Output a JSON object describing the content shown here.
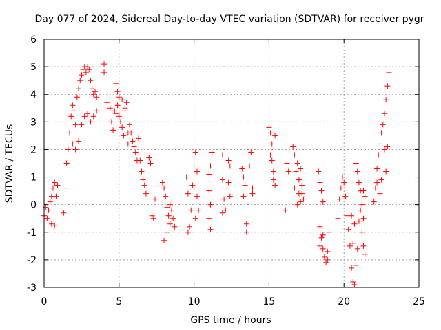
{
  "chart_data": {
    "type": "scatter",
    "title": "Day 077 of 2024, Sidereal Day-to-day VTEC variation (SDTVAR) for receiver pygr",
    "xlabel": "GPS time / hours",
    "ylabel": "SDTVAR / TECUs",
    "xlim": [
      0,
      25
    ],
    "ylim": [
      -3,
      6
    ],
    "xticks": [
      0,
      5,
      10,
      15,
      20,
      25
    ],
    "yticks": [
      -3,
      -2,
      -1,
      0,
      1,
      2,
      3,
      4,
      5,
      6
    ],
    "grid": true,
    "marker": "+",
    "color": "#ff0000",
    "series": [
      {
        "name": "SDTVAR",
        "points": [
          [
            0.0,
            -0.4
          ],
          [
            0.1,
            -0.1
          ],
          [
            0.2,
            -0.5
          ],
          [
            0.3,
            -0.2
          ],
          [
            0.4,
            0.1
          ],
          [
            0.5,
            0.3
          ],
          [
            0.6,
            0.6
          ],
          [
            0.7,
            0.8
          ],
          [
            0.9,
            0.7
          ],
          [
            0.5,
            -0.7
          ],
          [
            0.7,
            -0.75
          ],
          [
            0.8,
            0.3
          ],
          [
            1.3,
            -0.3
          ],
          [
            1.4,
            0.6
          ],
          [
            1.5,
            1.5
          ],
          [
            1.6,
            2.0
          ],
          [
            1.7,
            2.6
          ],
          [
            1.8,
            3.2
          ],
          [
            1.9,
            3.6
          ],
          [
            2.0,
            3.4
          ],
          [
            2.1,
            2.9
          ],
          [
            2.2,
            3.9
          ],
          [
            2.3,
            4.2
          ],
          [
            2.4,
            4.5
          ],
          [
            2.5,
            4.7
          ],
          [
            2.6,
            4.9
          ],
          [
            2.7,
            5.0
          ],
          [
            2.8,
            4.8
          ],
          [
            2.9,
            5.0
          ],
          [
            3.0,
            4.9
          ],
          [
            3.1,
            4.5
          ],
          [
            3.2,
            4.2
          ],
          [
            3.3,
            4.0
          ],
          [
            3.4,
            4.1
          ],
          [
            3.5,
            3.9
          ],
          [
            1.9,
            2.2
          ],
          [
            2.1,
            2.0
          ],
          [
            2.3,
            2.3
          ],
          [
            2.5,
            2.9
          ],
          [
            2.7,
            3.2
          ],
          [
            2.9,
            3.3
          ],
          [
            3.1,
            3.0
          ],
          [
            3.3,
            3.2
          ],
          [
            3.5,
            3.4
          ],
          [
            4.0,
            4.8
          ],
          [
            4.0,
            5.1
          ],
          [
            4.2,
            3.7
          ],
          [
            4.4,
            3.5
          ],
          [
            4.5,
            3.0
          ],
          [
            4.6,
            2.7
          ],
          [
            4.7,
            3.4
          ],
          [
            4.8,
            3.3
          ],
          [
            4.9,
            3.6
          ],
          [
            5.0,
            3.2
          ],
          [
            5.1,
            3.0
          ],
          [
            5.2,
            2.8
          ],
          [
            5.3,
            2.5
          ],
          [
            5.4,
            3.5
          ],
          [
            5.5,
            3.7
          ],
          [
            5.6,
            2.2
          ],
          [
            4.8,
            4.4
          ],
          [
            4.9,
            4.1
          ],
          [
            5.0,
            3.9
          ],
          [
            5.2,
            3.8
          ],
          [
            5.4,
            3.4
          ],
          [
            5.6,
            2.6
          ],
          [
            5.7,
            2.9
          ],
          [
            5.8,
            2.6
          ],
          [
            5.9,
            2.3
          ],
          [
            6.0,
            2.1
          ],
          [
            6.1,
            1.9
          ],
          [
            6.2,
            1.6
          ],
          [
            6.3,
            2.4
          ],
          [
            6.4,
            1.6
          ],
          [
            6.5,
            1.2
          ],
          [
            6.6,
            0.9
          ],
          [
            6.7,
            0.7
          ],
          [
            6.8,
            0.4
          ],
          [
            7.0,
            1.7
          ],
          [
            7.1,
            1.5
          ],
          [
            7.2,
            -0.4
          ],
          [
            7.3,
            -0.5
          ],
          [
            7.4,
            0.2
          ],
          [
            7.9,
            0.8
          ],
          [
            8.0,
            0.6
          ],
          [
            8.1,
            0.3
          ],
          [
            8.2,
            -0.1
          ],
          [
            8.3,
            -0.4
          ],
          [
            8.4,
            -0.7
          ],
          [
            8.2,
            -1.0
          ],
          [
            8.0,
            -1.3
          ],
          [
            8.5,
            -0.2
          ],
          [
            8.6,
            -0.5
          ],
          [
            8.4,
            0.0
          ],
          [
            8.7,
            -0.8
          ],
          [
            9.5,
            1.0
          ],
          [
            9.6,
            0.4
          ],
          [
            9.7,
            -0.8
          ],
          [
            9.6,
            -1.0
          ],
          [
            9.8,
            -0.2
          ],
          [
            9.9,
            0.7
          ],
          [
            10.0,
            1.4
          ],
          [
            10.1,
            1.9
          ],
          [
            10.2,
            1.2
          ],
          [
            10.0,
            0.6
          ],
          [
            10.1,
            -0.5
          ],
          [
            10.3,
            -0.2
          ],
          [
            10.2,
            0.3
          ],
          [
            11.0,
            1.1
          ],
          [
            11.0,
            0.5
          ],
          [
            11.1,
            0.0
          ],
          [
            11.0,
            -0.5
          ],
          [
            11.1,
            -0.9
          ],
          [
            11.2,
            1.9
          ],
          [
            11.1,
            1.4
          ],
          [
            11.9,
            1.8
          ],
          [
            11.9,
            0.9
          ],
          [
            12.0,
            0.2
          ],
          [
            11.9,
            -0.3
          ],
          [
            12.1,
            -0.2
          ],
          [
            12.2,
            0.6
          ],
          [
            12.3,
            1.6
          ],
          [
            12.4,
            1.4
          ],
          [
            12.3,
            0.8
          ],
          [
            12.4,
            0.3
          ],
          [
            13.2,
            1.3
          ],
          [
            13.3,
            1.0
          ],
          [
            13.4,
            0.7
          ],
          [
            13.3,
            0.3
          ],
          [
            13.5,
            -0.7
          ],
          [
            13.5,
            -1.0
          ],
          [
            13.8,
            1.9
          ],
          [
            13.9,
            0.6
          ],
          [
            13.9,
            0.4
          ],
          [
            13.7,
            1.4
          ],
          [
            15.0,
            2.8
          ],
          [
            15.1,
            2.6
          ],
          [
            15.2,
            2.2
          ],
          [
            15.2,
            1.6
          ],
          [
            15.3,
            1.2
          ],
          [
            15.3,
            0.9
          ],
          [
            15.4,
            0.7
          ],
          [
            15.4,
            2.5
          ],
          [
            15.1,
            1.8
          ],
          [
            16.1,
            -0.2
          ],
          [
            16.2,
            1.5
          ],
          [
            16.3,
            1.2
          ],
          [
            16.6,
            2.1
          ],
          [
            16.7,
            1.8
          ],
          [
            16.8,
            1.2
          ],
          [
            16.9,
            1.5
          ],
          [
            17.0,
            0.9
          ],
          [
            17.0,
            0.4
          ],
          [
            17.1,
            0.1
          ],
          [
            17.2,
            0.7
          ],
          [
            17.3,
            0.2
          ],
          [
            16.9,
            0.0
          ],
          [
            17.1,
            1.3
          ],
          [
            16.7,
            0.6
          ],
          [
            17.2,
            0.4
          ],
          [
            18.3,
            1.2
          ],
          [
            18.4,
            0.8
          ],
          [
            18.5,
            0.5
          ],
          [
            18.6,
            0.1
          ],
          [
            18.4,
            -0.8
          ],
          [
            18.5,
            -1.2
          ],
          [
            18.6,
            -1.6
          ],
          [
            18.7,
            -1.9
          ],
          [
            18.8,
            -2.1
          ],
          [
            18.9,
            -1.7
          ],
          [
            18.4,
            -1.5
          ],
          [
            18.6,
            -1.1
          ],
          [
            18.9,
            -2.0
          ],
          [
            19.0,
            -1.0
          ],
          [
            19.6,
            -0.5
          ],
          [
            19.7,
            0.2
          ],
          [
            19.8,
            0.6
          ],
          [
            19.9,
            1.0
          ],
          [
            20.0,
            0.8
          ],
          [
            20.1,
            0.3
          ],
          [
            20.2,
            -0.4
          ],
          [
            20.3,
            -0.9
          ],
          [
            20.4,
            -1.5
          ],
          [
            20.5,
            -2.3
          ],
          [
            20.6,
            -2.8
          ],
          [
            20.7,
            -2.9
          ],
          [
            20.8,
            -2.2
          ],
          [
            20.6,
            -1.4
          ],
          [
            20.9,
            -1.6
          ],
          [
            20.7,
            -0.7
          ],
          [
            20.5,
            -0.4
          ],
          [
            20.8,
            1.5
          ],
          [
            20.9,
            1.2
          ],
          [
            21.0,
            0.8
          ],
          [
            21.1,
            0.5
          ],
          [
            21.2,
            0.0
          ],
          [
            21.3,
            -0.5
          ],
          [
            21.2,
            -1.0
          ],
          [
            21.3,
            -1.5
          ],
          [
            21.4,
            -1.8
          ],
          [
            21.3,
            0.5
          ],
          [
            21.4,
            0.3
          ],
          [
            21.0,
            -0.6
          ],
          [
            21.1,
            -0.2
          ],
          [
            22.0,
            0.1
          ],
          [
            22.1,
            0.6
          ],
          [
            22.2,
            1.3
          ],
          [
            22.3,
            1.8
          ],
          [
            22.4,
            2.2
          ],
          [
            22.5,
            2.6
          ],
          [
            22.6,
            2.9
          ],
          [
            22.7,
            3.3
          ],
          [
            22.8,
            3.8
          ],
          [
            22.9,
            4.3
          ],
          [
            23.0,
            4.8
          ],
          [
            22.2,
            0.8
          ],
          [
            22.5,
            0.9
          ],
          [
            22.8,
            1.2
          ],
          [
            23.0,
            1.4
          ],
          [
            22.4,
            0.4
          ],
          [
            22.7,
            2.0
          ],
          [
            22.9,
            2.1
          ]
        ]
      }
    ]
  }
}
